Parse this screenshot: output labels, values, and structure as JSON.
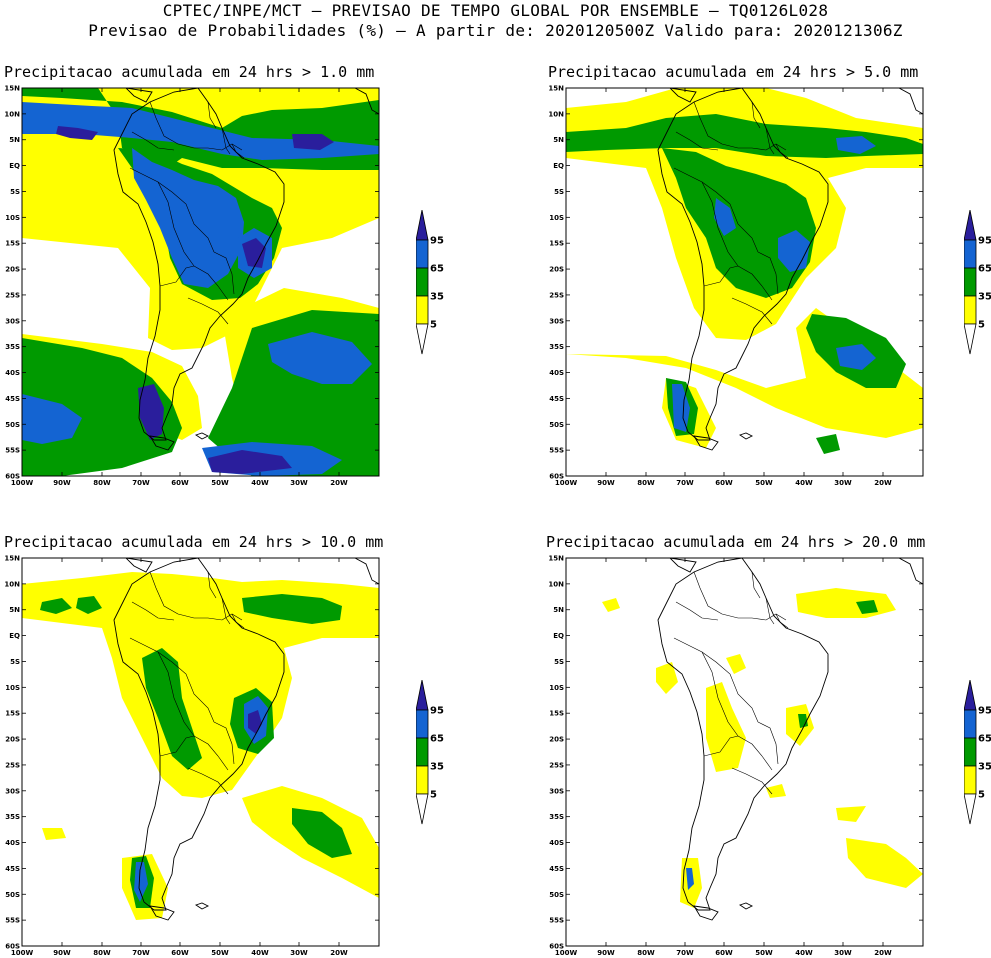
{
  "header": {
    "line1": "CPTEC/INPE/MCT – PREVISAO DE TEMPO GLOBAL POR ENSEMBLE – TQ0126L028",
    "line2": "Previsao de Probabilidades (%) –  A partir de: 2020120500Z  Valido para: 2020121306Z"
  },
  "panels": [
    {
      "title": "Precipitacao acumulada em 24 hrs > 1.0 mm"
    },
    {
      "title": "Precipitacao acumulada em 24 hrs > 5.0 mm"
    },
    {
      "title": "Precipitacao acumulada em 24 hrs > 10.0 mm"
    },
    {
      "title": "Precipitacao acumulada em 24 hrs > 20.0 mm"
    }
  ],
  "axes": {
    "lat_labels": [
      "15N",
      "10N",
      "5N",
      "EQ",
      "5S",
      "10S",
      "15S",
      "20S",
      "25S",
      "30S",
      "35S",
      "40S",
      "45S",
      "50S",
      "55S",
      "60S"
    ],
    "lon_labels": [
      "100W",
      "90W",
      "80W",
      "70W",
      "60W",
      "50W",
      "40W",
      "30W",
      "20W"
    ]
  },
  "legend": {
    "levels": [
      "5",
      "35",
      "65",
      "95"
    ],
    "colors": {
      "c5": "#ffff00",
      "c35": "#009a00",
      "c65": "#1464d2",
      "c95": "#2a1e9c"
    }
  }
}
